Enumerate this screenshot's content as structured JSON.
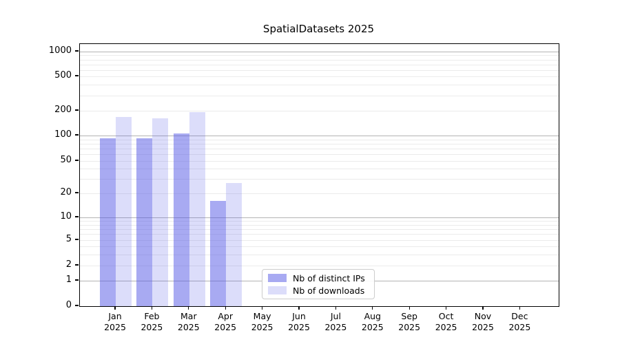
{
  "chart_data": {
    "type": "bar",
    "title": "SpatialDatasets 2025",
    "categories": [
      "Jan 2025",
      "Feb 2025",
      "Mar 2025",
      "Apr 2025",
      "May 2025",
      "Jun 2025",
      "Jul 2025",
      "Aug 2025",
      "Sep 2025",
      "Oct 2025",
      "Nov 2025",
      "Dec 2025"
    ],
    "series": [
      {
        "name": "Nb of distinct IPs",
        "color": "rgba(81,85,229,0.5)",
        "values": [
          93,
          92,
          105,
          16,
          null,
          null,
          null,
          null,
          null,
          null,
          null,
          null
        ]
      },
      {
        "name": "Nb of downloads",
        "color": "rgba(81,85,229,0.2)",
        "values": [
          167,
          162,
          193,
          27,
          null,
          null,
          null,
          null,
          null,
          null,
          null,
          null
        ]
      }
    ],
    "xlabel": "",
    "ylabel": "",
    "y_axis": {
      "scale": "symlog",
      "tick_labels": [
        0,
        1,
        2,
        5,
        10,
        20,
        50,
        100,
        200,
        500,
        1000
      ],
      "major_gridline_values": [
        1,
        10,
        100,
        1000
      ],
      "ylim": [
        0,
        1230
      ]
    },
    "grid": "horizontal, major + faint log minors",
    "legend_position": "lower center, inside plot",
    "colors": {
      "bar_base": "#5155e5",
      "major_grid": "#b3b3b3",
      "minor_grid": "#ebebeb",
      "axis": "#000000",
      "background": "#ffffff"
    }
  }
}
